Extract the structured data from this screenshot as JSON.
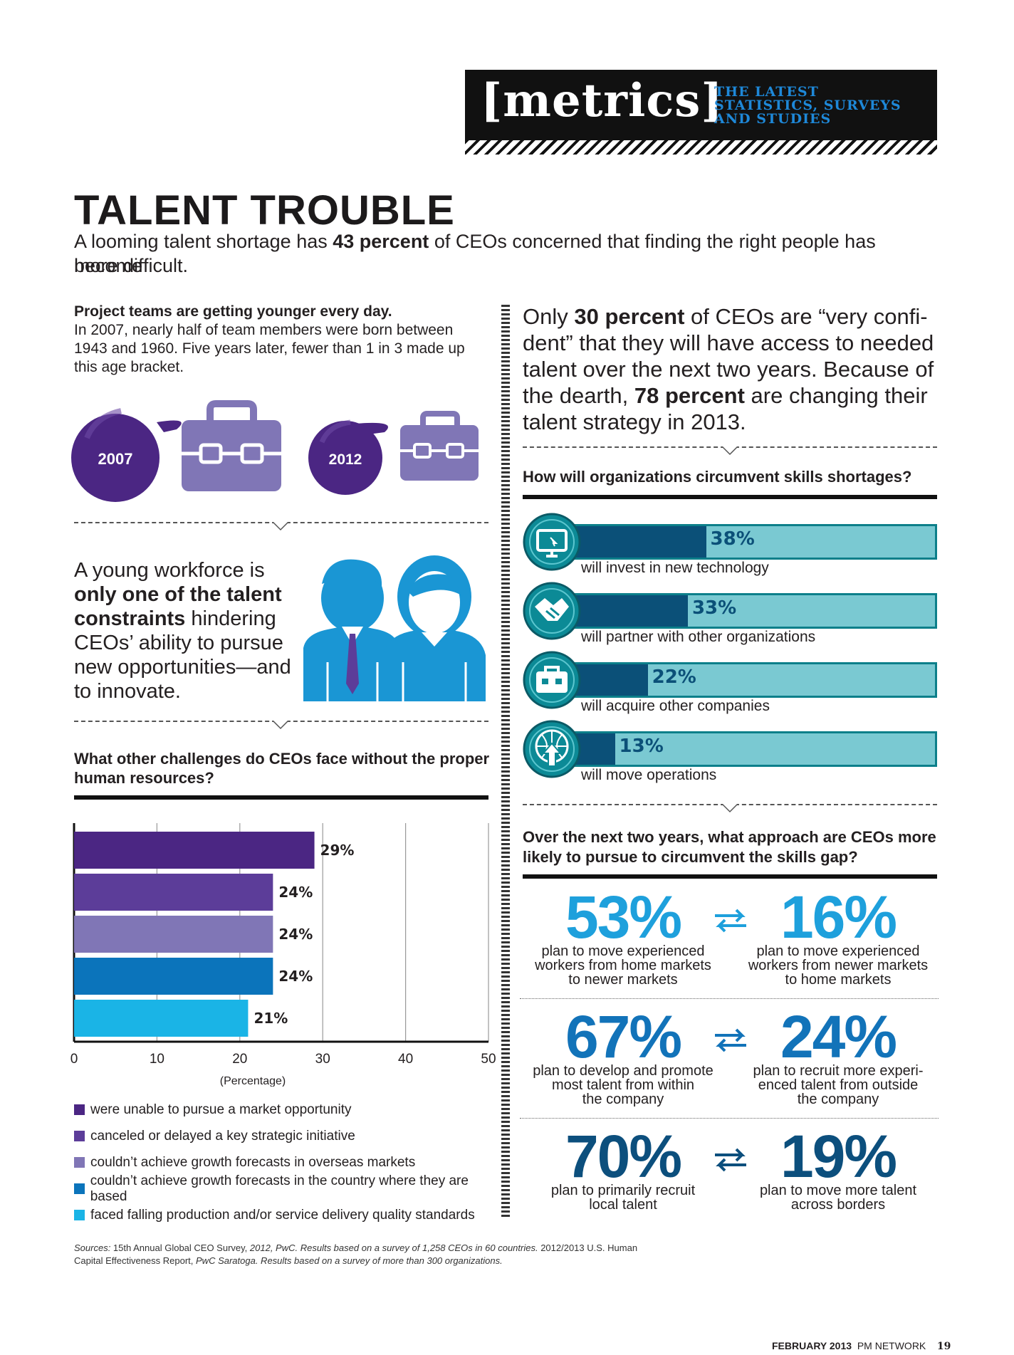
{
  "banner": {
    "word": "[metrics]",
    "tagline": [
      "THE LATEST",
      "STATISTICS, SURVEYS",
      "AND STUDIES"
    ]
  },
  "headline": {
    "title": "TALENT TROUBLE",
    "intro_pre": "A looming talent shortage has ",
    "intro_bold": "43 percent",
    "intro_post": " of CEOs concerned that finding the right people has become",
    "intro_line2": "more difficult."
  },
  "teams": {
    "heading": "Project teams are getting younger every day.",
    "body": [
      "In 2007, nearly half of team members were born between",
      "1943 and 1960. Five years later, fewer than 1 in 3 made up",
      "this age bracket."
    ],
    "year1": "2007",
    "year2": "2012"
  },
  "workforce": {
    "line1": "A young workforce is",
    "bold1": "only one of the talent",
    "bold2": "constraints",
    "rest2": " hindering",
    "line4": "CEOs’ ability to pursue",
    "line5": "new opportunities—and",
    "line6": "to innovate."
  },
  "confidence": {
    "l1_pre": "Only ",
    "l1_bold": "30 percent",
    "l1_post": " of CEOs are “very confi-",
    "l2": "dent” that they will have access to needed",
    "l3": "talent over the next two years. Because of",
    "l4_pre": "the dearth, ",
    "l4_bold": "78 percent",
    "l4_post": " are changing their",
    "l5": "talent strategy in 2013."
  },
  "challenges": {
    "heading": [
      "What other challenges do CEOs face without the proper",
      "human resources?"
    ],
    "axis_label": "(Percentage)",
    "legend": [
      "were unable to pursue a market opportunity",
      "canceled or delayed a key strategic initiative",
      "couldn’t achieve growth forecasts in overseas markets",
      "couldn’t achieve growth forecasts in the country where they are based",
      "faced falling production and/or service delivery quality standards"
    ]
  },
  "shortages": {
    "heading": "How will organizations circumvent skills shortages?",
    "icons": [
      "computer-icon",
      "handshake-icon",
      "briefcase-icon",
      "globe-icon"
    ]
  },
  "approach": {
    "heading": [
      "Over the next two years, what approach are CEOs more",
      "likely to pursue to circumvent the skills gap?"
    ],
    "rows": [
      {
        "left_pct": "53%",
        "left_cap": [
          "plan to move experienced",
          "workers from home markets",
          "to newer markets"
        ],
        "right_pct": "16%",
        "right_cap": [
          "plan to move experienced",
          "workers from newer markets",
          "to home markets"
        ],
        "color": "#1ea0dc"
      },
      {
        "left_pct": "67%",
        "left_cap": [
          "plan to develop and promote",
          "most talent from within",
          "the company"
        ],
        "right_pct": "24%",
        "right_cap": [
          "plan to recruit more experi-",
          "enced talent from outside",
          "the company"
        ],
        "color": "#1273b9"
      },
      {
        "left_pct": "70%",
        "left_cap": [
          "plan to primarily recruit",
          "local talent"
        ],
        "right_pct": "19%",
        "right_cap": [
          "plan to move more talent",
          "across borders"
        ],
        "color": "#0c4f7d"
      }
    ]
  },
  "sources": {
    "l1_a": "Sources:",
    "l1_b": " 15th Annual Global CEO Survey, ",
    "l1_c": "2012, PwC. Results based on a survey of 1,258 CEOs in 60 countries.",
    "l1_d": " 2012/2013 U.S. Human",
    "l2_a": "Capital Effectiveness Report, ",
    "l2_b": "PwC Saratoga. Results based on a survey of more than 300 organizations."
  },
  "footer": {
    "date": "FEBRUARY 2013",
    "pub": "PM NETWORK",
    "page": "19"
  },
  "colors": {
    "purples": [
      "#4b2683",
      "#5c3d99",
      "#8076b6",
      "#0b74bb",
      "#1ab4e6"
    ],
    "teal": "#0c8a96",
    "people": "#1a96d4"
  },
  "chart_data": [
    {
      "type": "bar",
      "orientation": "horizontal",
      "categories": [
        "were unable to pursue a market opportunity",
        "canceled or delayed a key strategic initiative",
        "couldn’t achieve growth forecasts in overseas markets",
        "couldn’t achieve growth forecasts in the country where they are based",
        "faced falling production and/or service delivery quality standards"
      ],
      "values": [
        29,
        24,
        24,
        24,
        21
      ],
      "value_labels": [
        "29%",
        "24%",
        "24%",
        "24%",
        "21%"
      ],
      "xlabel": "(Percentage)",
      "xlim": [
        0,
        50
      ],
      "xticks": [
        "0",
        "10",
        "20",
        "30",
        "40",
        "50"
      ],
      "grid": true
    },
    {
      "type": "bar",
      "orientation": "horizontal",
      "categories": [
        "will invest in new technology",
        "will partner with other organizations",
        "will acquire other companies",
        "will move operations"
      ],
      "values": [
        38,
        33,
        22,
        13
      ],
      "value_labels": [
        "38%",
        "33%",
        "22%",
        "13%"
      ],
      "xlim": [
        0,
        100
      ]
    }
  ]
}
